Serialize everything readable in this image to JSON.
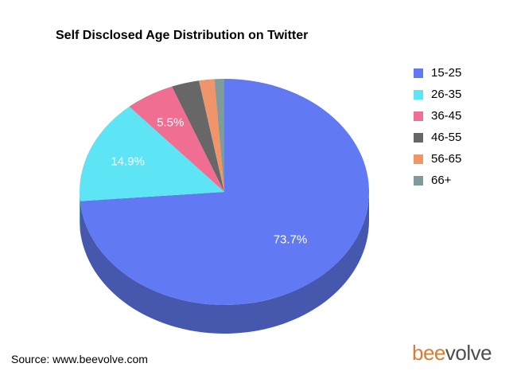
{
  "chart_data": {
    "type": "pie",
    "title": "Self Disclosed Age Distribution on Twitter",
    "style": "3d",
    "legend_position": "right",
    "slices": [
      {
        "label": "15-25",
        "value": 73.7,
        "value_label": "73.7%",
        "color": "#6179f2"
      },
      {
        "label": "26-35",
        "value": 14.9,
        "value_label": "14.9%",
        "color": "#5de5f6"
      },
      {
        "label": "36-45",
        "value": 5.5,
        "value_label": "5.5%",
        "color": "#f16e93"
      },
      {
        "label": "46-55",
        "value": 3.1,
        "value_label": "",
        "color": "#676767"
      },
      {
        "label": "56-65",
        "value": 1.7,
        "value_label": "",
        "color": "#f0956a"
      },
      {
        "label": "66+",
        "value": 1.1,
        "value_label": "",
        "color": "#7f9c9c"
      }
    ]
  },
  "footer": {
    "source": "Source: www.beevolve.com",
    "logo_bee": "bee",
    "logo_volve": "volve"
  }
}
